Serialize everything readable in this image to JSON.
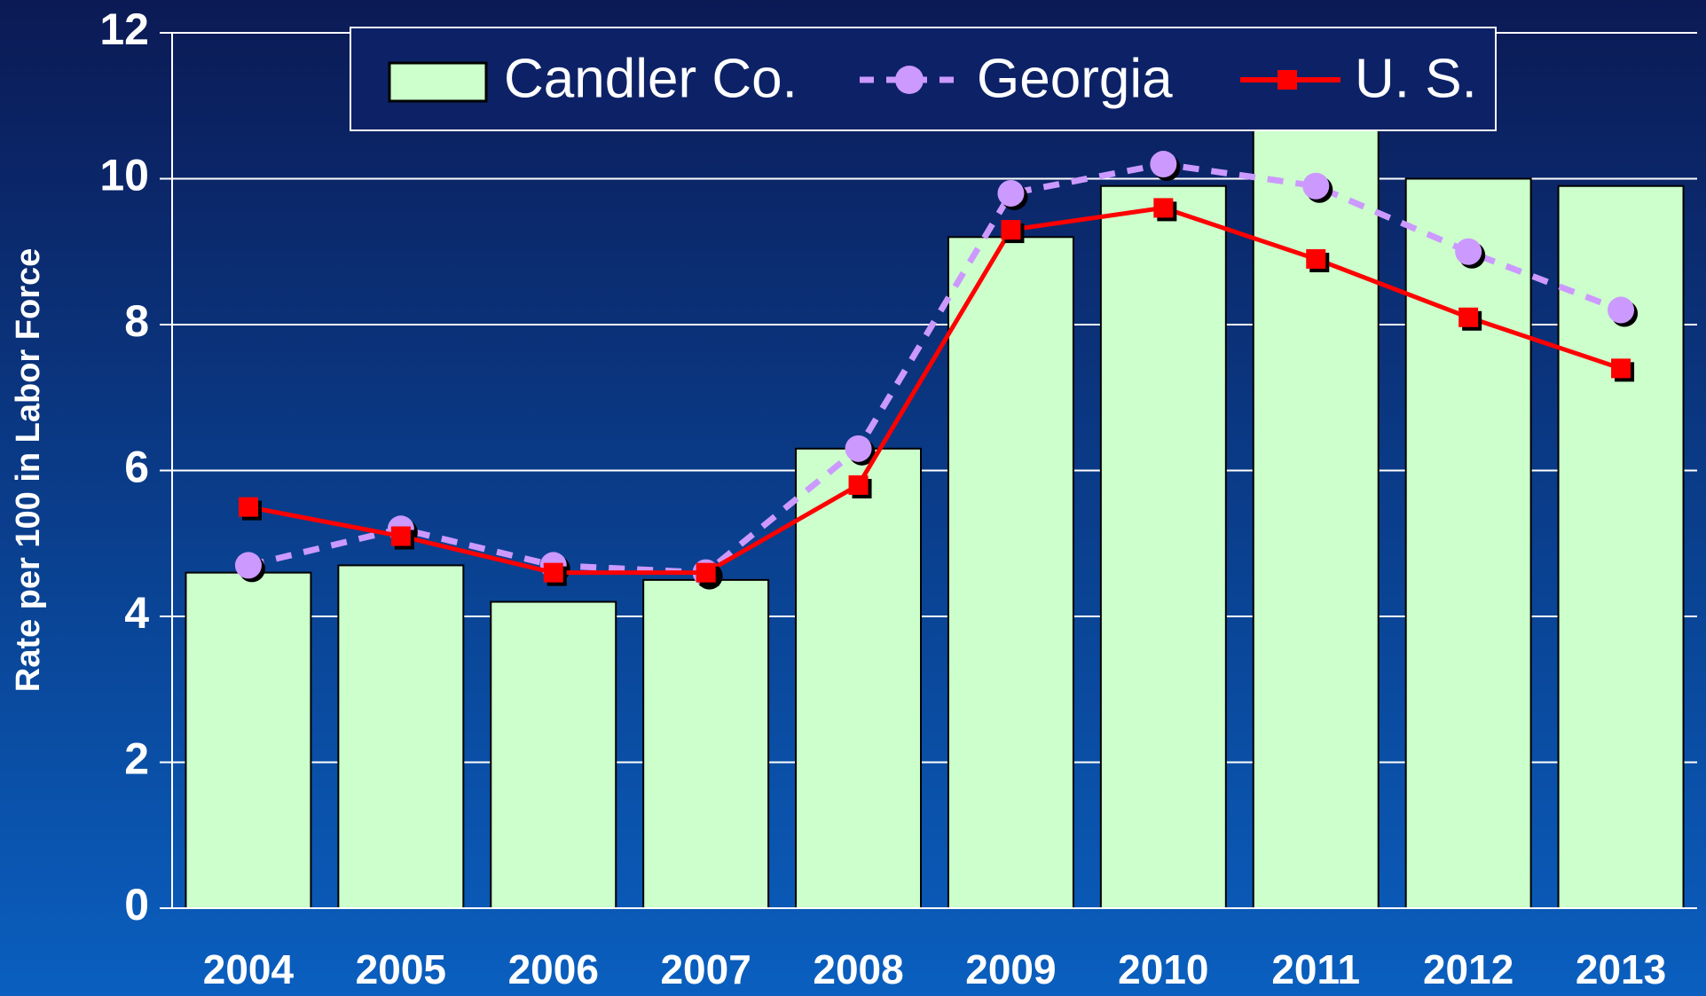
{
  "chart_data": {
    "type": "bar",
    "categories": [
      "2004",
      "2005",
      "2006",
      "2007",
      "2008",
      "2009",
      "2010",
      "2011",
      "2012",
      "2013"
    ],
    "series": [
      {
        "name": "Candler Co.",
        "type": "bar",
        "color": "#ccffcc",
        "values": [
          4.6,
          4.7,
          4.2,
          4.5,
          6.3,
          9.2,
          9.9,
          10.7,
          10.0,
          9.9
        ]
      },
      {
        "name": "Georgia",
        "type": "line",
        "color": "#cc99ff",
        "values": [
          4.7,
          5.2,
          4.7,
          4.6,
          6.3,
          9.8,
          10.2,
          9.9,
          9.0,
          8.2
        ]
      },
      {
        "name": "U. S.",
        "type": "line",
        "color": "#ff0000",
        "values": [
          5.5,
          5.1,
          4.6,
          4.6,
          5.8,
          9.3,
          9.6,
          8.9,
          8.1,
          7.4
        ]
      }
    ],
    "y_label": "Rate per 100 in Labor Force",
    "ylim": [
      0,
      12
    ],
    "yticks": [
      0,
      2,
      4,
      6,
      8,
      10,
      12
    ],
    "grid": true,
    "legend": "top"
  }
}
